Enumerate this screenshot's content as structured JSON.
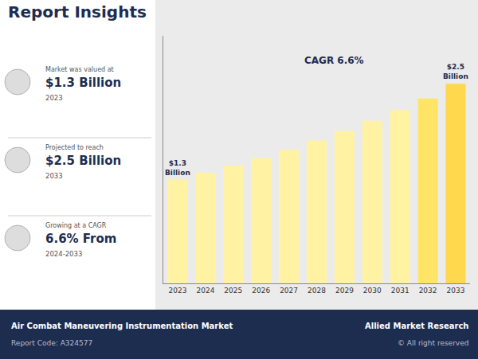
{
  "chart_data": {
    "type": "bar",
    "title": "Report Insights",
    "categories": [
      "2023",
      "2024",
      "2025",
      "2026",
      "2027",
      "2028",
      "2029",
      "2030",
      "2031",
      "2032",
      "2033"
    ],
    "values": [
      1.3,
      1.385,
      1.475,
      1.57,
      1.675,
      1.79,
      1.91,
      2.035,
      2.17,
      2.315,
      2.5
    ],
    "value_labels": [
      "$1.3\nBillion",
      null,
      null,
      null,
      null,
      null,
      null,
      null,
      null,
      null,
      "$2.5\nBillion"
    ],
    "colors": [
      "#FFF3A3",
      "#FFF3A3",
      "#FFF3A3",
      "#FFF3A3",
      "#FFF3A3",
      "#FFF3A3",
      "#FFF3A3",
      "#FFF3A3",
      "#FFF3A3",
      "#FFE566",
      "#FFD84D"
    ],
    "ylim": [
      0,
      3.1
    ],
    "yticks": [],
    "tick_labels": "x",
    "grid": false,
    "annotations": [
      "Market was valued at",
      "$1.3 Billion",
      "2023",
      "Projected to reach",
      "$2.5 Billion",
      "2033",
      "Growing at a CAGR",
      "6.6% From",
      "2024-2033",
      "Air Combat Maneuvering Instrumentation Market",
      "Report Code: A324577",
      "Allied Market Research",
      "© All right reserved",
      "CAGR 6.6%"
    ]
  }
}
